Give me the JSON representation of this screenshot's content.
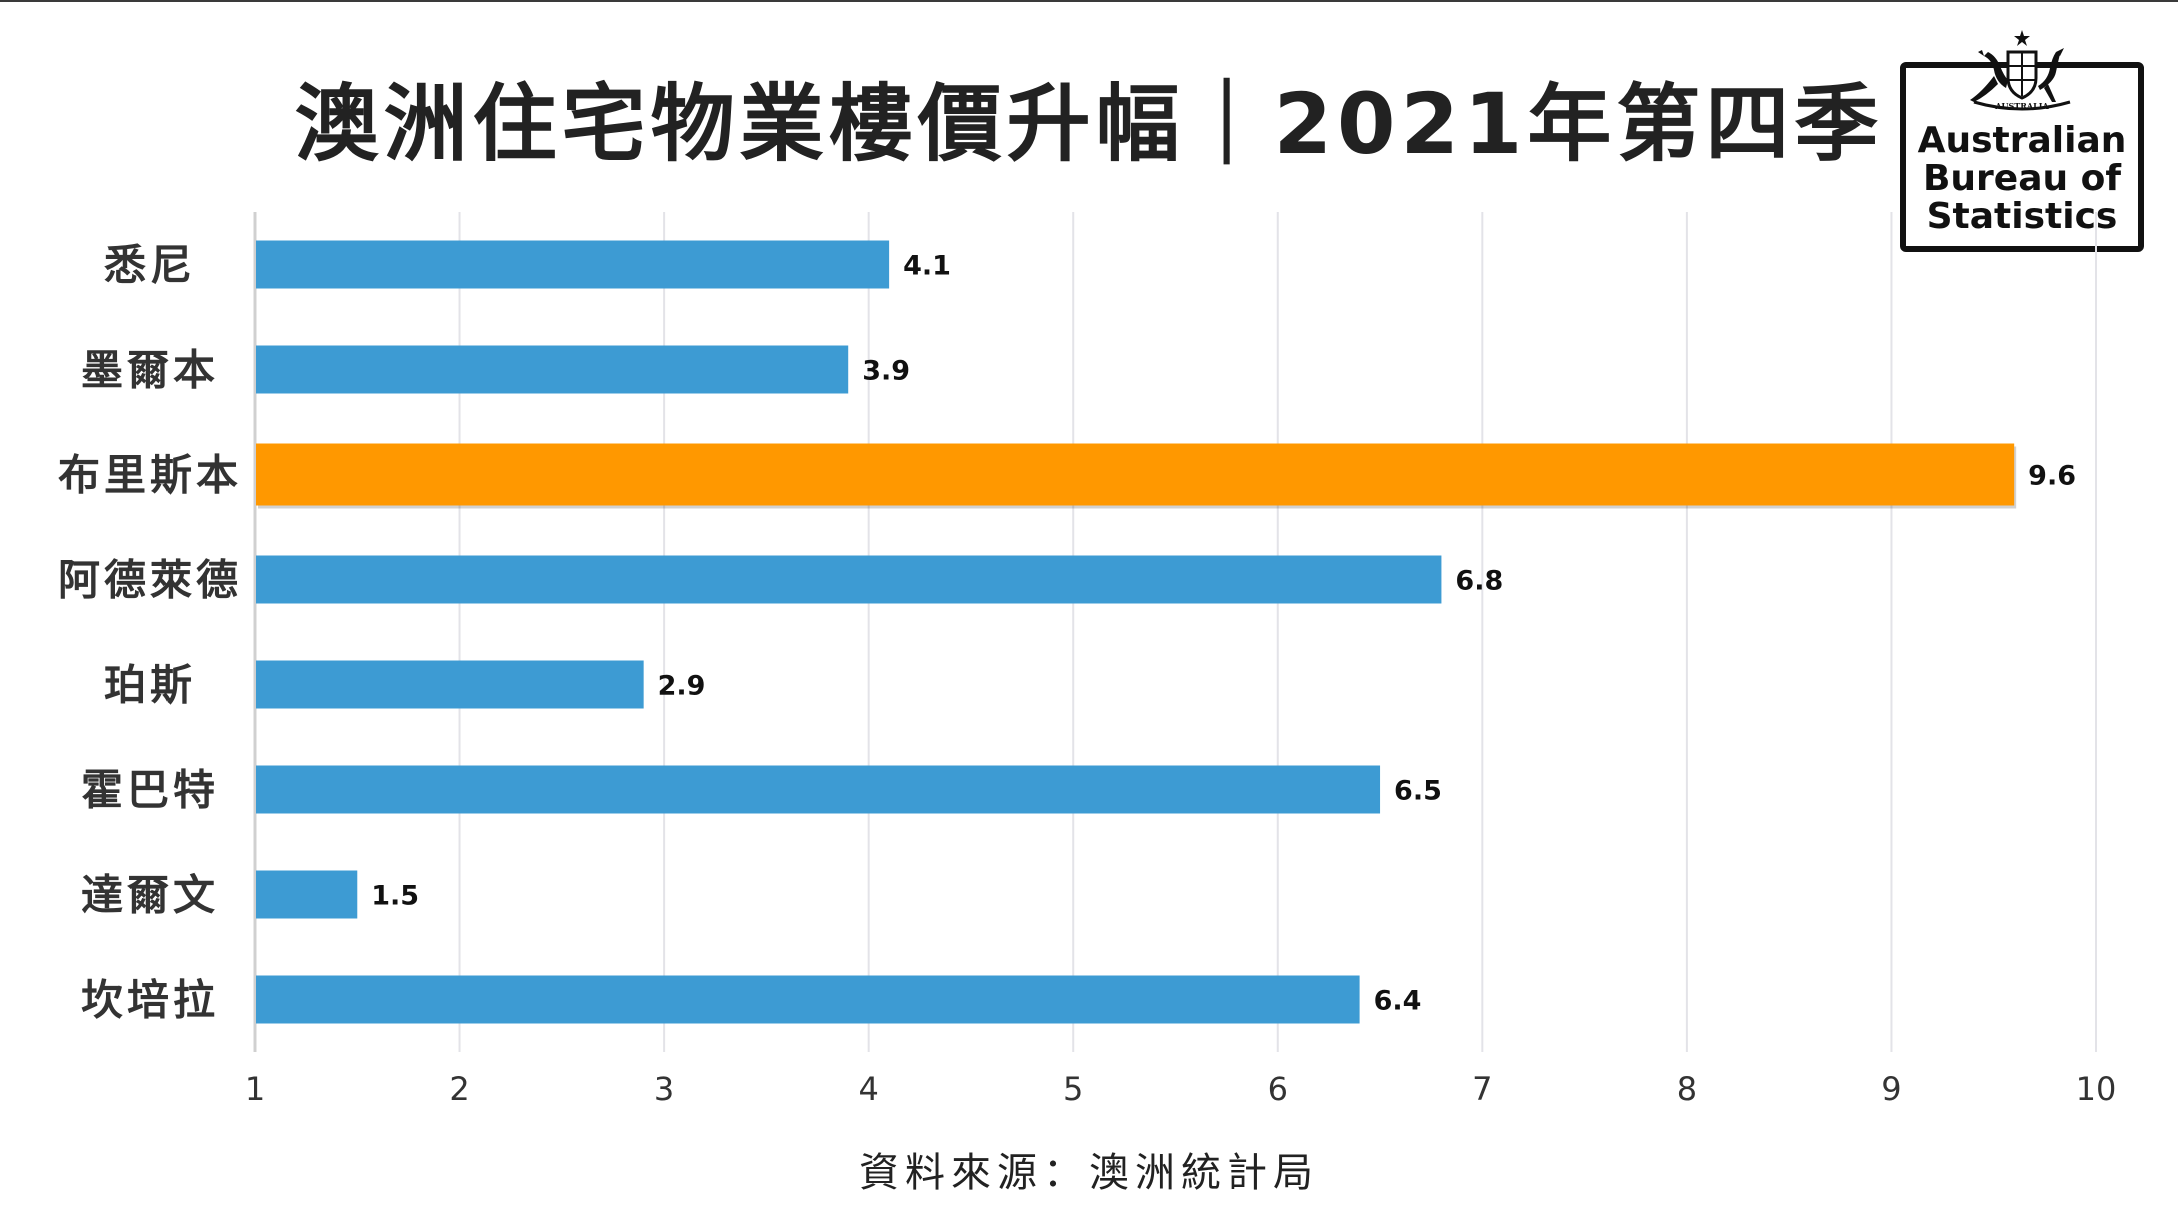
{
  "title": "澳洲住宅物業樓價升幅｜2021年第四季",
  "source": "資料來源：澳洲統計局",
  "logo": {
    "crest_text": "AUSTRALIA",
    "line1": "Australian",
    "line2": "Bureau of",
    "line3": "Statistics"
  },
  "colors": {
    "bar": "#3d9bd3",
    "highlight": "#ff9800",
    "grid": "#e3e3e8",
    "axis": "#d0d0d0",
    "text": "#222222"
  },
  "chart_data": {
    "type": "bar",
    "orientation": "horizontal",
    "title": "澳洲住宅物業樓價升幅｜2021年第四季",
    "categories": [
      "悉尼",
      "墨爾本",
      "布里斯本",
      "阿德萊德",
      "珀斯",
      "霍巴特",
      "達爾文",
      "坎培拉"
    ],
    "values": [
      4.1,
      3.9,
      9.6,
      6.8,
      2.9,
      6.5,
      1.5,
      6.4
    ],
    "value_labels": [
      "4.1",
      "3.9",
      "9.6",
      "6.8",
      "2.9",
      "6.5",
      "1.5",
      "6.4"
    ],
    "highlight_index": 2,
    "xlim": [
      1,
      10
    ],
    "xticks": [
      "1",
      "2",
      "3",
      "4",
      "5",
      "6",
      "7",
      "8",
      "9",
      "10"
    ],
    "grid": true,
    "legend": false,
    "xlabel": "",
    "ylabel": ""
  }
}
